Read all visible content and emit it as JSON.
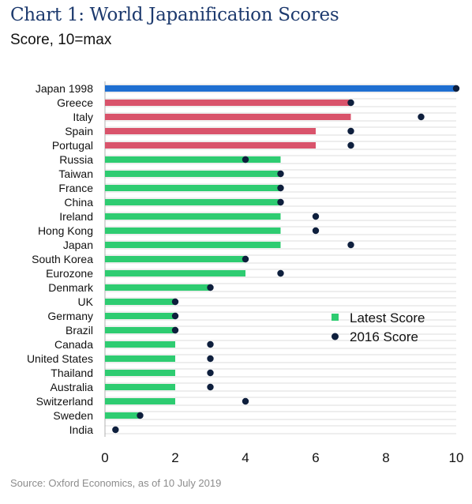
{
  "title": "Chart 1: World Japanification Scores",
  "subtitle": "Score, 10=max",
  "source": "Source: Oxford Economics, as of 10 July 2019",
  "colors": {
    "japan1998_bar": "#1f6fd1",
    "high_bar": "#d9536b",
    "latest_bar": "#2ecc71",
    "dot": "#0e1f3d",
    "grid": "#dcdcdc",
    "axis": "#b0b0b0"
  },
  "chart_data": {
    "type": "bar",
    "orientation": "horizontal",
    "xlim": [
      0,
      10
    ],
    "xticks": [
      0,
      2,
      4,
      6,
      8,
      10
    ],
    "legend_placement": "right-center",
    "categories": [
      "Japan 1998",
      "Greece",
      "Italy",
      "Spain",
      "Portugal",
      "Russia",
      "Taiwan",
      "France",
      "China",
      "Ireland",
      "Hong Kong",
      "Japan",
      "South Korea",
      "Eurozone",
      "Denmark",
      "UK",
      "Germany",
      "Brazil",
      "Canada",
      "United States",
      "Thailand",
      "Australia",
      "Switzerland",
      "Sweden",
      "India"
    ],
    "series": [
      {
        "name": "Latest Score",
        "kind": "bar",
        "values": [
          10,
          7,
          7,
          6,
          6,
          5,
          5,
          5,
          5,
          5,
          5,
          5,
          4,
          4,
          3,
          2,
          2,
          2,
          2,
          2,
          2,
          2,
          2,
          1,
          0
        ],
        "bar_colors": [
          "#1f6fd1",
          "#d9536b",
          "#d9536b",
          "#d9536b",
          "#d9536b",
          "#2ecc71",
          "#2ecc71",
          "#2ecc71",
          "#2ecc71",
          "#2ecc71",
          "#2ecc71",
          "#2ecc71",
          "#2ecc71",
          "#2ecc71",
          "#2ecc71",
          "#2ecc71",
          "#2ecc71",
          "#2ecc71",
          "#2ecc71",
          "#2ecc71",
          "#2ecc71",
          "#2ecc71",
          "#2ecc71",
          "#2ecc71",
          "#2ecc71"
        ]
      },
      {
        "name": "2016 Score",
        "kind": "dot",
        "values": [
          10,
          7,
          9,
          7,
          7,
          4,
          5,
          5,
          5,
          6,
          6,
          7,
          4,
          5,
          3,
          2,
          2,
          2,
          3,
          3,
          3,
          3,
          4,
          1,
          0.3
        ]
      }
    ]
  }
}
